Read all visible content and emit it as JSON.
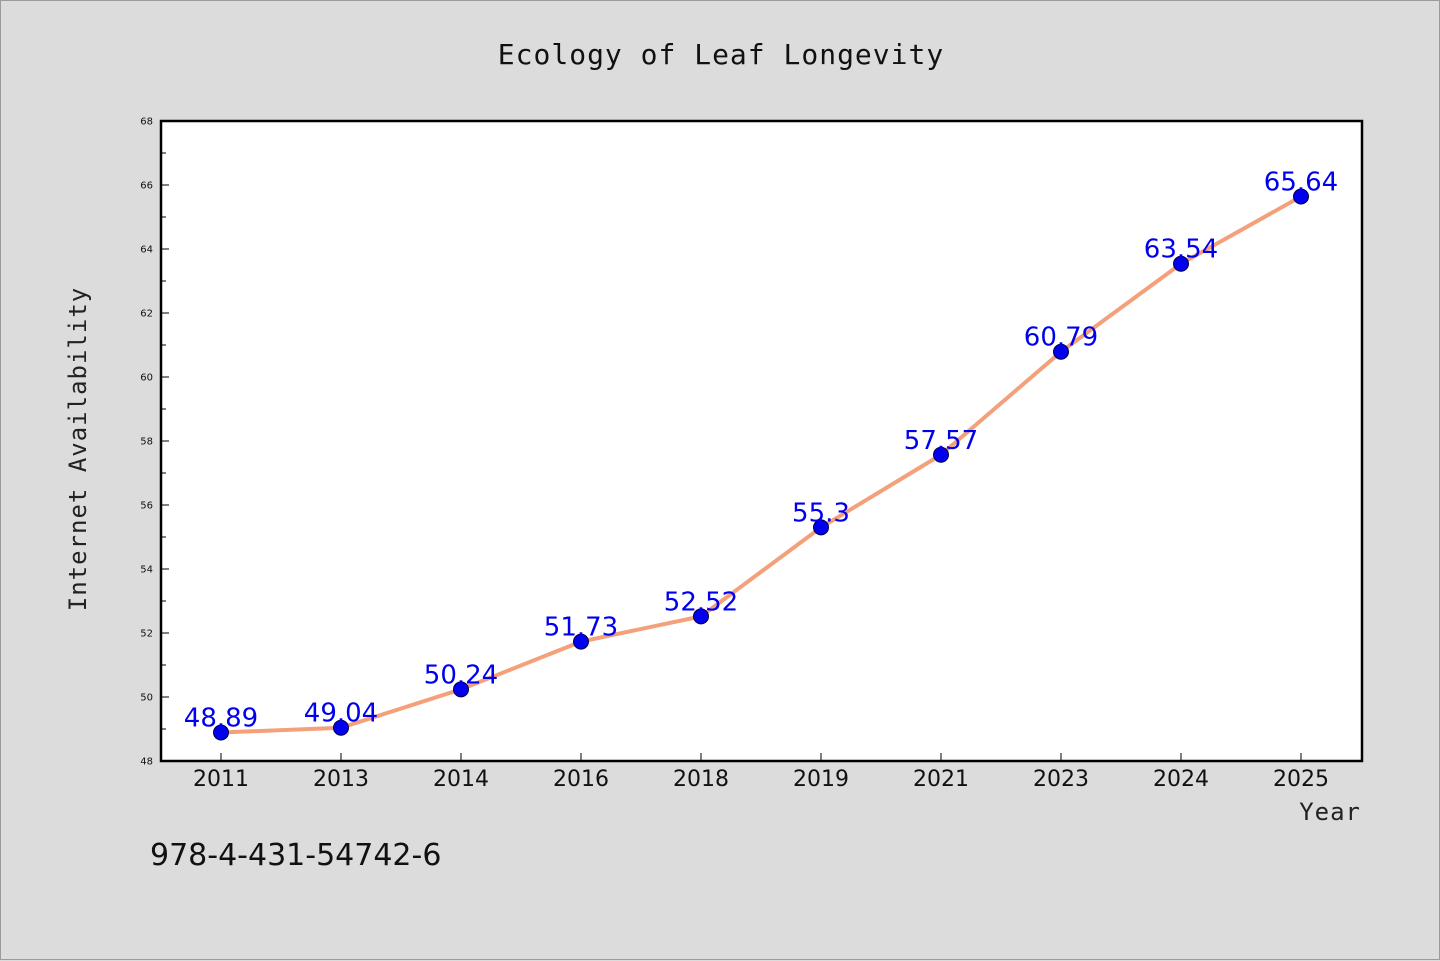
{
  "chart_data": {
    "type": "line",
    "title": "Ecology of Leaf Longevity",
    "xlabel": "Year",
    "ylabel": "Internet Availability",
    "categories": [
      "2011",
      "2013",
      "2014",
      "2016",
      "2018",
      "2019",
      "2021",
      "2023",
      "2024",
      "2025"
    ],
    "series": [
      {
        "values": [
          48.89,
          49.04,
          50.24,
          51.73,
          52.52,
          55.3,
          57.57,
          60.79,
          63.54,
          65.64
        ]
      }
    ],
    "data_labels": [
      "48.89",
      "49.04",
      "50.24",
      "51.73",
      "52.52",
      "55.3",
      "57.57",
      "60.79",
      "63.54",
      "65.64"
    ],
    "ylim": [
      48,
      68
    ],
    "yticks": [
      48,
      50,
      52,
      54,
      56,
      58,
      60,
      62,
      64,
      66,
      68
    ],
    "grid": false,
    "legend": "none",
    "line_color": "#f4a07a",
    "marker_color": "#0000ee",
    "label_color": "#0000ee"
  },
  "footnote": "978-4-431-54742-6"
}
